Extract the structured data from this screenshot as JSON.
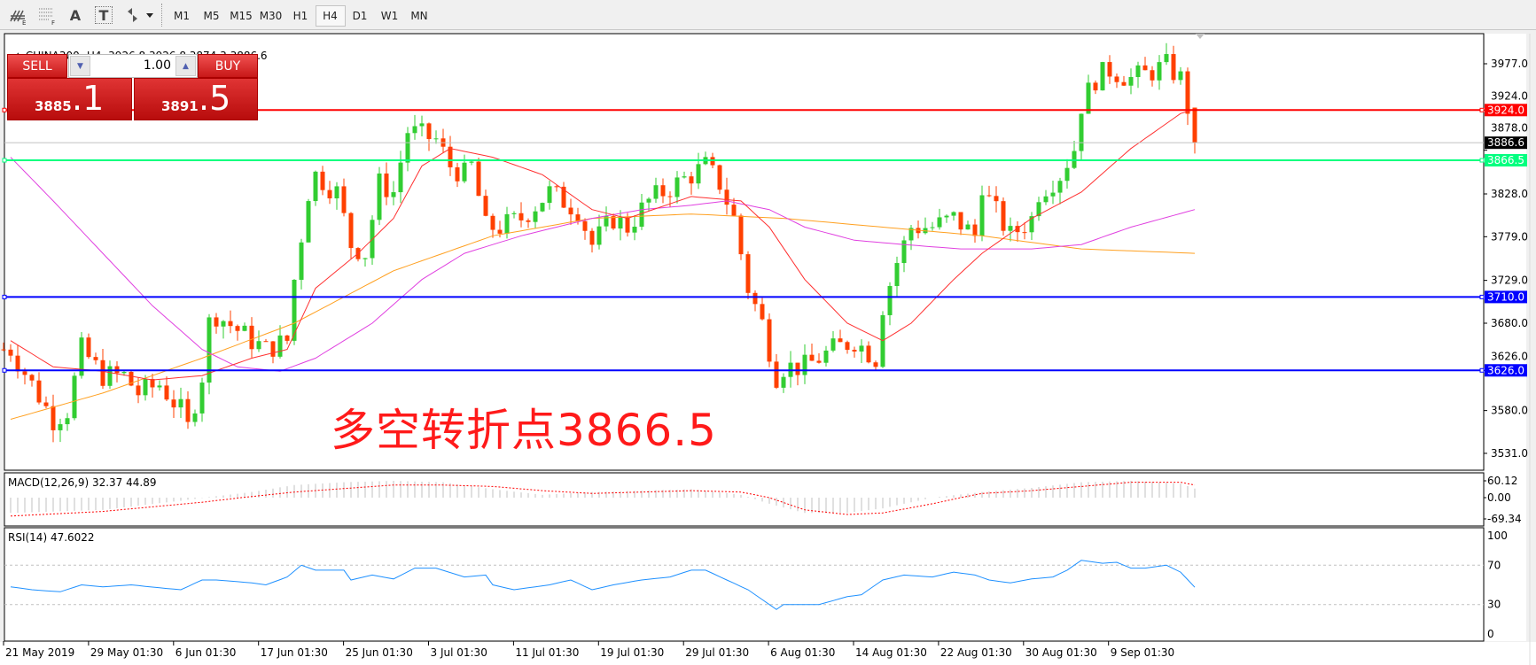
{
  "toolbar": {
    "icons": [
      "chart-objects-icon",
      "grid-icon",
      "text-icon",
      "text-label-icon",
      "arrows-icon"
    ],
    "text_icon_glyph": "A",
    "label_icon_glyph": "T",
    "timeframes": [
      "M1",
      "M5",
      "M15",
      "M30",
      "H1",
      "H4",
      "D1",
      "W1",
      "MN"
    ],
    "active_timeframe": "H4"
  },
  "chart_header": {
    "symbol": "CHINA300-,H4",
    "ohlc": "3926.8 3926.8 3874.3 3886.6"
  },
  "trade": {
    "sell_label": "SELL",
    "buy_label": "BUY",
    "lot": "1.00",
    "bid_main": "3885",
    "bid_frac": ".1",
    "ask_main": "3891",
    "ask_frac": ".5"
  },
  "annotation": "多空转折点3866.5",
  "colors": {
    "bull": "#32cd32",
    "bear": "#ff4000",
    "ma_fast": "#ff3030",
    "ma_mid": "#e040e0",
    "ma_slow": "#ffa020",
    "rsi": "#1e90ff",
    "macd_signal": "#ff0000",
    "macd_hist": "#c0c0c0",
    "line_red": "#ff0000",
    "line_green": "#00ff7f",
    "line_blue": "#0000ff"
  },
  "price_axis": {
    "ticks": [
      "3977.0",
      "3924.0",
      "3878.0",
      "3828.0",
      "3779.0",
      "3729.0",
      "3680.0",
      "3626.0",
      "3580.0",
      "3531.0"
    ],
    "range": [
      3531,
      3977
    ]
  },
  "hlines": [
    {
      "price": 3924.0,
      "label": "3924.0",
      "color": "#ff0000"
    },
    {
      "price": 3866.5,
      "label": "3866.5",
      "color": "#00ff7f"
    },
    {
      "price": 3710.0,
      "label": "3710.0",
      "color": "#0000ff"
    },
    {
      "price": 3626.0,
      "label": "3626.0",
      "color": "#0000ff"
    }
  ],
  "current_price": {
    "price": 3886.6,
    "label": "3886.6"
  },
  "chart_data": {
    "type": "candlestick",
    "last_candle": {
      "open": 3926.8,
      "high": 3926.8,
      "low": 3874.3,
      "close": 3886.6
    },
    "close_path": [
      [
        1,
        3650
      ],
      [
        4,
        3610
      ],
      [
        7,
        3570
      ],
      [
        9,
        3580
      ],
      [
        11,
        3650
      ],
      [
        14,
        3620
      ],
      [
        17,
        3620
      ],
      [
        19,
        3600
      ],
      [
        22,
        3610
      ],
      [
        25,
        3580
      ],
      [
        26,
        3560
      ],
      [
        28,
        3620
      ],
      [
        29,
        3680
      ],
      [
        30,
        3690
      ],
      [
        35,
        3660
      ],
      [
        37,
        3650
      ],
      [
        40,
        3660
      ],
      [
        41,
        3730
      ],
      [
        43,
        3830
      ],
      [
        44,
        3850
      ],
      [
        47,
        3830
      ],
      [
        49,
        3770
      ],
      [
        51,
        3760
      ],
      [
        53,
        3840
      ],
      [
        55,
        3830
      ],
      [
        57,
        3900
      ],
      [
        61,
        3890
      ],
      [
        63,
        3860
      ],
      [
        65,
        3850
      ],
      [
        66,
        3860
      ],
      [
        68,
        3790
      ],
      [
        70,
        3790
      ],
      [
        73,
        3800
      ],
      [
        77,
        3830
      ],
      [
        79,
        3820
      ],
      [
        81,
        3810
      ],
      [
        83,
        3770
      ],
      [
        86,
        3800
      ],
      [
        88,
        3790
      ],
      [
        91,
        3820
      ],
      [
        95,
        3840
      ],
      [
        99,
        3860
      ],
      [
        101,
        3840
      ],
      [
        103,
        3800
      ],
      [
        105,
        3720
      ],
      [
        107,
        3680
      ],
      [
        109,
        3620
      ],
      [
        110,
        3630
      ],
      [
        113,
        3630
      ],
      [
        115,
        3640
      ],
      [
        117,
        3650
      ],
      [
        120,
        3660
      ],
      [
        123,
        3640
      ],
      [
        124,
        3700
      ],
      [
        126,
        3750
      ],
      [
        128,
        3790
      ],
      [
        131,
        3790
      ],
      [
        134,
        3800
      ],
      [
        137,
        3780
      ],
      [
        138,
        3840
      ],
      [
        139,
        3820
      ],
      [
        142,
        3780
      ],
      [
        145,
        3800
      ],
      [
        146,
        3830
      ],
      [
        149,
        3850
      ],
      [
        151,
        3880
      ],
      [
        152,
        3930
      ],
      [
        154,
        3960
      ],
      [
        156,
        3970
      ],
      [
        159,
        3960
      ],
      [
        161,
        3965
      ],
      [
        164,
        3975
      ],
      [
        166,
        3960
      ],
      [
        167,
        3926.8
      ]
    ],
    "ma_fast": [
      [
        1,
        3660
      ],
      [
        7,
        3630
      ],
      [
        14,
        3625
      ],
      [
        21,
        3615
      ],
      [
        28,
        3620
      ],
      [
        35,
        3640
      ],
      [
        40,
        3650
      ],
      [
        44,
        3720
      ],
      [
        50,
        3760
      ],
      [
        55,
        3800
      ],
      [
        59,
        3860
      ],
      [
        63,
        3880
      ],
      [
        69,
        3870
      ],
      [
        76,
        3850
      ],
      [
        83,
        3810
      ],
      [
        88,
        3800
      ],
      [
        97,
        3825
      ],
      [
        104,
        3820
      ],
      [
        108,
        3790
      ],
      [
        113,
        3730
      ],
      [
        119,
        3680
      ],
      [
        124,
        3660
      ],
      [
        128,
        3680
      ],
      [
        134,
        3730
      ],
      [
        138,
        3760
      ],
      [
        145,
        3800
      ],
      [
        152,
        3830
      ],
      [
        159,
        3880
      ],
      [
        166,
        3920
      ],
      [
        168,
        3925
      ]
    ],
    "ma_mid": [
      [
        1,
        3870
      ],
      [
        7,
        3820
      ],
      [
        14,
        3760
      ],
      [
        21,
        3700
      ],
      [
        28,
        3650
      ],
      [
        33,
        3630
      ],
      [
        39,
        3625
      ],
      [
        44,
        3640
      ],
      [
        52,
        3680
      ],
      [
        59,
        3730
      ],
      [
        65,
        3760
      ],
      [
        73,
        3780
      ],
      [
        83,
        3800
      ],
      [
        90,
        3810
      ],
      [
        97,
        3815
      ],
      [
        102,
        3820
      ],
      [
        108,
        3810
      ],
      [
        113,
        3790
      ],
      [
        120,
        3775
      ],
      [
        127,
        3770
      ],
      [
        135,
        3765
      ],
      [
        145,
        3765
      ],
      [
        152,
        3770
      ],
      [
        159,
        3790
      ],
      [
        168,
        3810
      ]
    ],
    "ma_slow": [
      [
        1,
        3570
      ],
      [
        14,
        3600
      ],
      [
        28,
        3640
      ],
      [
        41,
        3680
      ],
      [
        55,
        3740
      ],
      [
        69,
        3780
      ],
      [
        83,
        3800
      ],
      [
        97,
        3805
      ],
      [
        110,
        3800
      ],
      [
        124,
        3790
      ],
      [
        138,
        3780
      ],
      [
        152,
        3765
      ],
      [
        168,
        3760
      ]
    ],
    "x_labels": [
      "21 May 2019",
      "29 May 01:30",
      "6 Jun 01:30",
      "17 Jun 01:30",
      "25 Jun 01:30",
      "3 Jul 01:30",
      "11 Jul 01:30",
      "19 Jul 01:30",
      "29 Jul 01:30",
      "6 Aug 01:30",
      "14 Aug 01:30",
      "22 Aug 01:30",
      "30 Aug 01:30",
      "9 Sep 01:30"
    ]
  },
  "macd": {
    "label": "MACD(12,26,9) 32.37 44.89",
    "ticks": [
      "60.12",
      "0.00",
      "-69.34"
    ],
    "main": [
      [
        1,
        -50
      ],
      [
        14,
        -40
      ],
      [
        25,
        -10
      ],
      [
        35,
        20
      ],
      [
        41,
        45
      ],
      [
        48,
        55
      ],
      [
        55,
        60
      ],
      [
        62,
        55
      ],
      [
        69,
        30
      ],
      [
        76,
        10
      ],
      [
        83,
        20
      ],
      [
        97,
        30
      ],
      [
        104,
        10
      ],
      [
        108,
        -20
      ],
      [
        113,
        -50
      ],
      [
        119,
        -50
      ],
      [
        124,
        -35
      ],
      [
        131,
        0
      ],
      [
        138,
        20
      ],
      [
        145,
        35
      ],
      [
        152,
        55
      ],
      [
        159,
        60
      ],
      [
        166,
        50
      ],
      [
        168,
        32.37
      ]
    ],
    "signal": [
      [
        1,
        -60
      ],
      [
        14,
        -45
      ],
      [
        28,
        -15
      ],
      [
        41,
        20
      ],
      [
        55,
        45
      ],
      [
        62,
        45
      ],
      [
        69,
        40
      ],
      [
        76,
        25
      ],
      [
        83,
        15
      ],
      [
        97,
        25
      ],
      [
        104,
        20
      ],
      [
        108,
        0
      ],
      [
        113,
        -40
      ],
      [
        119,
        -55
      ],
      [
        124,
        -50
      ],
      [
        131,
        -20
      ],
      [
        138,
        15
      ],
      [
        145,
        25
      ],
      [
        152,
        40
      ],
      [
        159,
        55
      ],
      [
        166,
        55
      ],
      [
        168,
        44.89
      ]
    ]
  },
  "rsi": {
    "label": "RSI(14) 47.6022",
    "ticks": [
      "100",
      "70",
      "30",
      "0"
    ],
    "levels": [
      70,
      30
    ],
    "values": [
      [
        1,
        48
      ],
      [
        4,
        45
      ],
      [
        8,
        43
      ],
      [
        11,
        50
      ],
      [
        14,
        48
      ],
      [
        18,
        50
      ],
      [
        22,
        47
      ],
      [
        25,
        45
      ],
      [
        28,
        55
      ],
      [
        30,
        55
      ],
      [
        35,
        52
      ],
      [
        37,
        50
      ],
      [
        40,
        58
      ],
      [
        42,
        70
      ],
      [
        44,
        65
      ],
      [
        48,
        65
      ],
      [
        49,
        55
      ],
      [
        52,
        60
      ],
      [
        55,
        56
      ],
      [
        58,
        67
      ],
      [
        61,
        67
      ],
      [
        65,
        58
      ],
      [
        68,
        60
      ],
      [
        69,
        50
      ],
      [
        72,
        45
      ],
      [
        75,
        48
      ],
      [
        77,
        50
      ],
      [
        80,
        55
      ],
      [
        83,
        45
      ],
      [
        86,
        50
      ],
      [
        90,
        55
      ],
      [
        94,
        58
      ],
      [
        97,
        65
      ],
      [
        99,
        65
      ],
      [
        102,
        55
      ],
      [
        105,
        45
      ],
      [
        107,
        35
      ],
      [
        109,
        25
      ],
      [
        110,
        30
      ],
      [
        115,
        30
      ],
      [
        119,
        38
      ],
      [
        121,
        40
      ],
      [
        124,
        55
      ],
      [
        127,
        60
      ],
      [
        131,
        58
      ],
      [
        134,
        63
      ],
      [
        137,
        60
      ],
      [
        139,
        55
      ],
      [
        142,
        52
      ],
      [
        145,
        56
      ],
      [
        148,
        58
      ],
      [
        150,
        65
      ],
      [
        152,
        75
      ],
      [
        155,
        72
      ],
      [
        157,
        73
      ],
      [
        159,
        67
      ],
      [
        161,
        67
      ],
      [
        164,
        70
      ],
      [
        166,
        63
      ],
      [
        168,
        47.6
      ]
    ]
  }
}
